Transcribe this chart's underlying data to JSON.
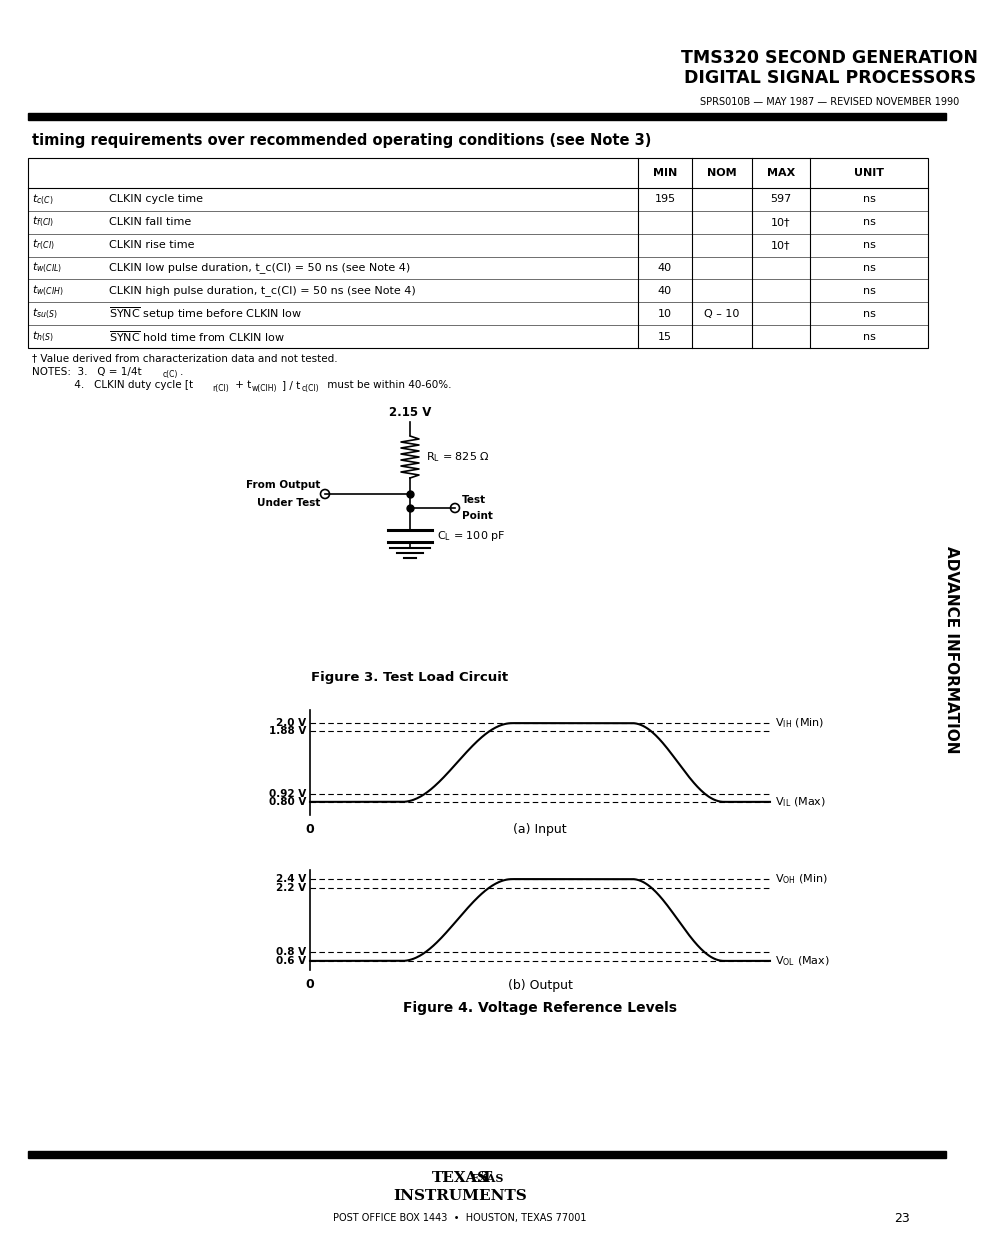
{
  "title_line1": "TMS320 SECOND GENERATION",
  "title_line2": "DIGITAL SIGNAL PROCESSORS",
  "subtitle": "SPRS010B — MAY 1987 — REVISED NOVEMBER 1990",
  "section_title": "timing requirements over recommended operating conditions (see Note 3)",
  "row_sym": [
    "$t_{c(C)}$",
    "$t_{f(CI)}$",
    "$t_{r(CI)}$",
    "$t_{w(CIL)}$",
    "$t_{w(CIH)}$",
    "$t_{su(S)}$",
    "$t_{h(S)}$"
  ],
  "row_desc": [
    "CLKIN cycle time",
    "CLKIN fall time",
    "CLKIN rise time",
    "CLKIN low pulse duration, t_c(CI) = 50 ns (see Note 4)",
    "CLKIN high pulse duration, t_c(CI) = 50 ns (see Note 4)",
    "SYNC setup time before CLKIN low",
    "SYNC hold time from CLKIN low"
  ],
  "row_min": [
    "195",
    "",
    "",
    "40",
    "40",
    "10",
    "15"
  ],
  "row_nom": [
    "",
    "",
    "",
    "",
    "",
    "Q – 10",
    ""
  ],
  "row_max": [
    "597",
    "10†",
    "10†",
    "",
    "",
    "",
    ""
  ],
  "row_unit": [
    "ns",
    "ns",
    "ns",
    "ns",
    "ns",
    "ns",
    "ns"
  ],
  "fig3_title": "Figure 3. Test Load Circuit",
  "fig4_title": "Figure 4. Voltage Reference Levels",
  "fig_a_label": "(a) Input",
  "fig_b_label": "(b) Output",
  "page_number": "23",
  "background": "#ffffff",
  "text_color": "#000000",
  "advance_info_text": "ADVANCE INFORMATION"
}
